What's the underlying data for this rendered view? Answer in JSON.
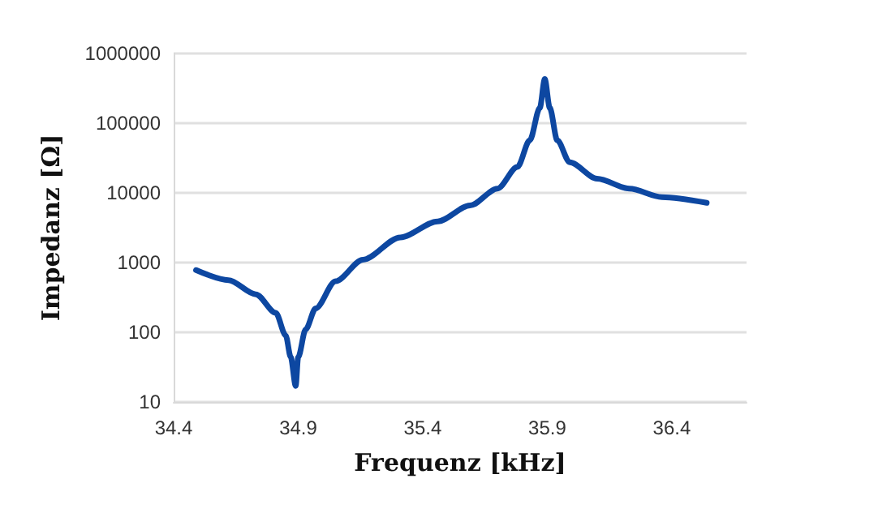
{
  "chart_data": {
    "type": "line",
    "xlabel": "Frequenz [kHz]",
    "ylabel": "Impedanz [Ω]",
    "x": [
      34.49,
      34.62,
      34.73,
      34.81,
      34.85,
      34.87,
      34.89,
      34.9,
      34.93,
      34.97,
      35.05,
      35.16,
      35.31,
      35.46,
      35.59,
      35.7,
      35.78,
      35.83,
      35.87,
      35.89,
      35.91,
      35.94,
      35.99,
      36.1,
      36.23,
      36.36,
      36.54
    ],
    "series": [
      {
        "color": "#0d47a1",
        "values": [
          780,
          560,
          350,
          190,
          90,
          44,
          17,
          44,
          110,
          220,
          540,
          1100,
          2300,
          3900,
          6600,
          11500,
          23500,
          57000,
          166000,
          430000,
          166000,
          57000,
          27500,
          16000,
          11500,
          8700,
          7200
        ]
      }
    ],
    "xlim": [
      34.4,
      36.7
    ],
    "xticks": [
      34.4,
      34.9,
      35.4,
      35.9,
      36.4
    ],
    "ylim": [
      10,
      1000000
    ],
    "yticks": [
      10,
      100,
      1000,
      10000,
      100000,
      1000000
    ],
    "log": "y",
    "grid": "y",
    "marker": "none",
    "line_style": "solid"
  }
}
